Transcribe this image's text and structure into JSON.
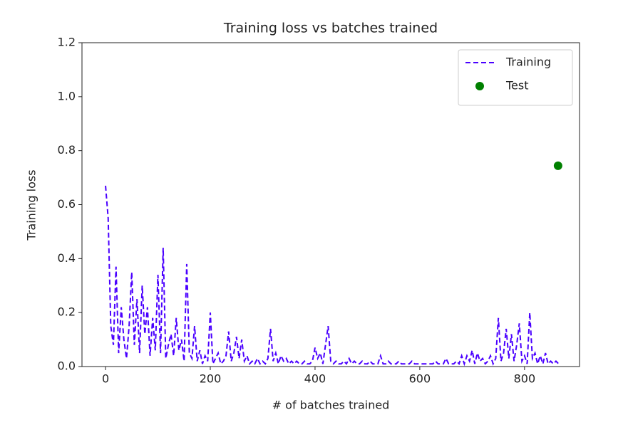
{
  "chart_data": {
    "type": "line",
    "title": "Training loss vs batches trained",
    "xlabel": "# of batches trained",
    "ylabel": "Training loss",
    "xlim": [
      -45,
      905
    ],
    "ylim": [
      0,
      1.2
    ],
    "xticks": [
      0,
      200,
      400,
      600,
      800
    ],
    "yticks": [
      {
        "value": 0,
        "label": "0.0"
      },
      0.2,
      0.4,
      0.6,
      0.8,
      {
        "value": 1,
        "label": "1.0"
      },
      1.2
    ],
    "grid": false,
    "legend": "upper right",
    "series": [
      {
        "name": "Training",
        "color": "#4a00ff",
        "style": "dashed",
        "x": [
          0,
          5,
          10,
          15,
          20,
          25,
          30,
          35,
          40,
          45,
          50,
          55,
          60,
          65,
          70,
          75,
          80,
          85,
          90,
          95,
          100,
          105,
          110,
          115,
          120,
          125,
          130,
          135,
          140,
          145,
          150,
          155,
          160,
          165,
          170,
          175,
          180,
          185,
          190,
          195,
          200,
          205,
          210,
          215,
          220,
          225,
          230,
          235,
          240,
          245,
          250,
          255,
          260,
          265,
          270,
          275,
          280,
          285,
          290,
          295,
          300,
          305,
          310,
          315,
          320,
          325,
          330,
          335,
          340,
          345,
          350,
          355,
          360,
          365,
          370,
          375,
          380,
          385,
          390,
          395,
          400,
          405,
          410,
          415,
          420,
          425,
          430,
          435,
          440,
          445,
          450,
          455,
          460,
          465,
          470,
          475,
          480,
          485,
          490,
          495,
          500,
          505,
          510,
          515,
          520,
          525,
          530,
          535,
          540,
          545,
          550,
          555,
          560,
          565,
          570,
          575,
          580,
          585,
          590,
          595,
          600,
          605,
          610,
          615,
          620,
          625,
          630,
          635,
          640,
          645,
          650,
          655,
          660,
          665,
          670,
          675,
          680,
          685,
          690,
          695,
          700,
          705,
          710,
          715,
          720,
          725,
          730,
          735,
          740,
          745,
          750,
          755,
          760,
          765,
          770,
          775,
          780,
          785,
          790,
          795,
          800,
          805,
          810,
          815,
          820,
          825,
          830,
          835,
          840,
          845,
          850,
          855,
          860,
          865
        ],
        "values": [
          0.67,
          0.55,
          0.15,
          0.08,
          0.37,
          0.05,
          0.22,
          0.1,
          0.03,
          0.15,
          0.35,
          0.08,
          0.25,
          0.05,
          0.3,
          0.12,
          0.22,
          0.04,
          0.18,
          0.06,
          0.34,
          0.05,
          0.44,
          0.03,
          0.08,
          0.12,
          0.04,
          0.18,
          0.06,
          0.1,
          0.02,
          0.38,
          0.05,
          0.03,
          0.15,
          0.02,
          0.06,
          0.01,
          0.04,
          0.02,
          0.2,
          0.01,
          0.03,
          0.05,
          0.01,
          0.02,
          0.04,
          0.13,
          0.02,
          0.05,
          0.11,
          0.03,
          0.1,
          0.02,
          0.04,
          0.01,
          0.02,
          0.01,
          0.03,
          0.01,
          0.02,
          0.01,
          0.03,
          0.14,
          0.02,
          0.05,
          0.01,
          0.04,
          0.02,
          0.03,
          0.01,
          0.02,
          0.01,
          0.02,
          0.01,
          0.01,
          0.02,
          0.01,
          0.01,
          0.02,
          0.07,
          0.03,
          0.05,
          0.01,
          0.08,
          0.15,
          0.02,
          0.01,
          0.02,
          0.01,
          0.01,
          0.02,
          0.01,
          0.03,
          0.01,
          0.02,
          0.01,
          0.01,
          0.02,
          0.01,
          0.01,
          0.02,
          0.01,
          0.01,
          0.01,
          0.04,
          0.01,
          0.01,
          0.02,
          0.01,
          0.01,
          0.01,
          0.02,
          0.01,
          0.01,
          0.01,
          0.01,
          0.02,
          0.01,
          0.01,
          0.01,
          0.01,
          0.01,
          0.01,
          0.01,
          0.01,
          0.02,
          0.01,
          0.01,
          0.01,
          0.03,
          0.01,
          0.01,
          0.01,
          0.02,
          0.01,
          0.04,
          0.01,
          0.04,
          0.02,
          0.06,
          0.01,
          0.05,
          0.02,
          0.03,
          0.01,
          0.02,
          0.04,
          0.01,
          0.03,
          0.18,
          0.02,
          0.05,
          0.14,
          0.03,
          0.12,
          0.02,
          0.08,
          0.16,
          0.02,
          0.04,
          0.01,
          0.2,
          0.03,
          0.05,
          0.01,
          0.04,
          0.01,
          0.05,
          0.01,
          0.02,
          0.01,
          0.02,
          0.01
        ]
      },
      {
        "name": "Test",
        "color": "#008000",
        "style": "marker",
        "x": [
          864
        ],
        "values": [
          0.744
        ]
      }
    ]
  }
}
